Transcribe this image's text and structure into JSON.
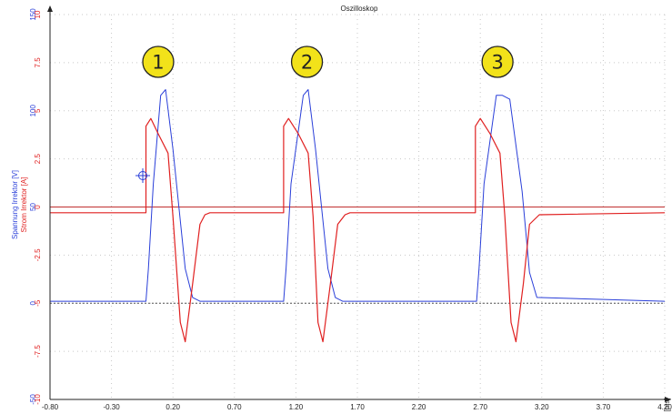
{
  "chart_data": {
    "type": "line",
    "title": "Oszilloskop",
    "xlabel": "[ms]",
    "xlim": [
      -0.8,
      4.2
    ],
    "x_ticks": [
      "-0.80",
      "-0.30",
      "0.20",
      "0.70",
      "1.20",
      "1.70",
      "2.20",
      "2.70",
      "3.20",
      "3.70",
      "4.20"
    ],
    "x_tick_values": [
      -0.8,
      -0.3,
      0.2,
      0.7,
      1.2,
      1.7,
      2.2,
      2.7,
      3.2,
      3.7,
      4.2
    ],
    "y_axes": [
      {
        "label": "Spannung Irrektor [V]",
        "color": "#2a3fd9",
        "ylim": [
          -50,
          150
        ],
        "ticks": [
          "-50",
          "0",
          "50",
          "100",
          "150"
        ],
        "tick_values": [
          -50,
          0,
          50,
          100,
          150
        ]
      },
      {
        "label": "Strom Irrektor [A]",
        "color": "#e02020",
        "ylim": [
          -10,
          10
        ],
        "ticks": [
          "-10",
          "-7.5",
          "-5",
          "-2.5",
          "0",
          "2.5",
          "5",
          "7.5",
          "10"
        ],
        "tick_values": [
          -10,
          -7.5,
          -5,
          -2.5,
          0,
          2.5,
          5,
          7.5,
          10
        ]
      }
    ],
    "grid": true,
    "series": [
      {
        "name": "Spannung Irrektor [V]",
        "color": "#2a3fd9",
        "axis": 0,
        "x": [
          -0.8,
          -0.02,
          0.0,
          0.04,
          0.1,
          0.14,
          0.2,
          0.3,
          0.36,
          0.42,
          1.1,
          1.12,
          1.16,
          1.26,
          1.3,
          1.36,
          1.46,
          1.52,
          1.58,
          2.67,
          2.69,
          2.73,
          2.83,
          2.88,
          2.94,
          3.04,
          3.1,
          3.16,
          4.2
        ],
        "y": [
          1,
          1,
          18,
          62,
          108,
          111,
          80,
          18,
          3,
          1,
          1,
          18,
          62,
          108,
          111,
          80,
          18,
          3,
          1,
          1,
          18,
          62,
          108,
          108,
          106,
          58,
          16,
          3,
          1
        ]
      },
      {
        "name": "Strom Irrektor [A]",
        "color": "#e02020",
        "axis": 1,
        "x": [
          -0.8,
          -0.02,
          -0.02,
          0.02,
          0.08,
          0.16,
          0.2,
          0.26,
          0.3,
          0.36,
          0.42,
          0.46,
          0.5,
          1.1,
          1.1,
          1.14,
          1.22,
          1.3,
          1.34,
          1.38,
          1.42,
          1.48,
          1.54,
          1.6,
          1.64,
          2.66,
          2.66,
          2.7,
          2.78,
          2.86,
          2.9,
          2.95,
          2.99,
          3.05,
          3.1,
          3.18,
          4.2
        ],
        "y": [
          -0.3,
          -0.3,
          4.2,
          4.6,
          3.8,
          2.8,
          -0.5,
          -6.0,
          -7.0,
          -4.0,
          -0.9,
          -0.4,
          -0.3,
          -0.3,
          4.2,
          4.6,
          3.8,
          2.8,
          -0.5,
          -6.0,
          -7.0,
          -4.0,
          -0.9,
          -0.4,
          -0.3,
          -0.3,
          4.2,
          4.6,
          3.8,
          2.8,
          -0.5,
          -6.0,
          -7.0,
          -4.0,
          -0.9,
          -0.4,
          -0.3
        ]
      }
    ],
    "reference_lines": [
      {
        "axis": 1,
        "y": 0,
        "color": "#c03030"
      },
      {
        "axis": 0,
        "y": 0,
        "color": "#555555"
      }
    ],
    "annotations": [
      {
        "label": "1",
        "x": 0.08
      },
      {
        "label": "2",
        "x": 1.29
      },
      {
        "label": "3",
        "x": 2.84
      }
    ]
  }
}
